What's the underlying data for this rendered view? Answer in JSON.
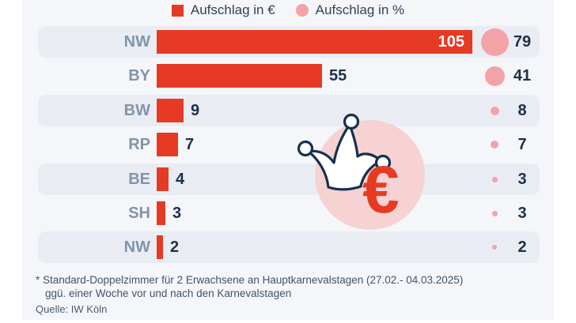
{
  "legend": {
    "eur_label": "Aufschlag in €",
    "pct_label": "Aufschlag in %"
  },
  "colors": {
    "bar_red": "#e73a24",
    "dot_pink": "#f3a3a7",
    "big_circle_pink": "#f6d2d3",
    "row_stripe": "#e9edf3",
    "panel_bg": "#f4f6f9",
    "label_slate": "#8194aa",
    "value_navy": "#1d3049"
  },
  "chart_data": {
    "type": "bar",
    "orientation": "horizontal",
    "title": "",
    "categories": [
      "NW",
      "BY",
      "BW",
      "RP",
      "BE",
      "SH",
      "NW"
    ],
    "series": [
      {
        "name": "Aufschlag in €",
        "values": [
          105,
          55,
          9,
          7,
          4,
          3,
          2
        ]
      },
      {
        "name": "Aufschlag in %",
        "values": [
          79,
          41,
          8,
          7,
          3,
          3,
          2
        ]
      }
    ],
    "legend_position": "top",
    "grid": false,
    "value_labels": true
  },
  "icons": {
    "center_graphic": "jester-hat-and-euro-sign-icon"
  },
  "footnotes": {
    "line1": "* Standard-Doppelzimmer für 2 Erwachsene an Hauptkarnevalstagen (27.02.- 04.03.2025)",
    "line2": "ggü. einer Woche vor und nach den Karnevalstagen",
    "source": "Quelle: IW Köln"
  }
}
